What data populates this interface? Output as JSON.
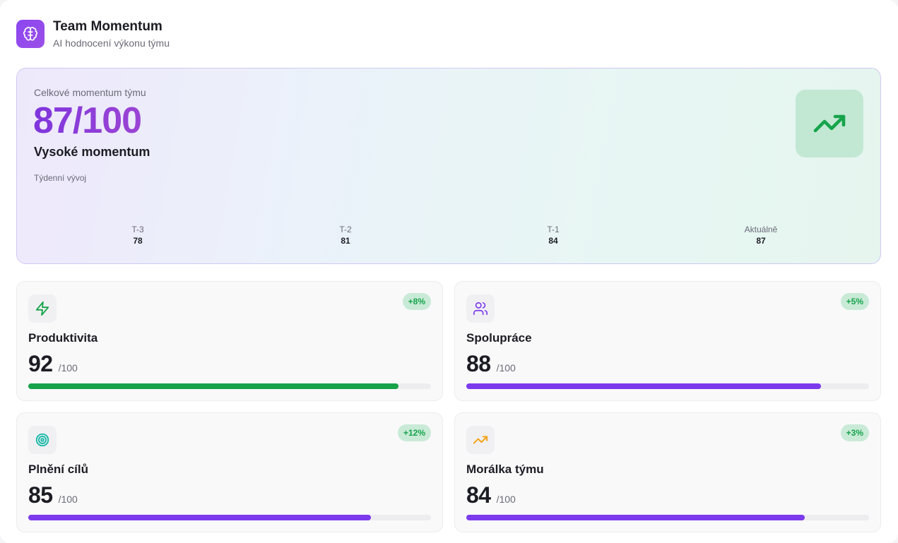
{
  "header": {
    "title": "Team Momentum",
    "subtitle": "AI hodnocení výkonu týmu",
    "logo_icon": "brain-icon"
  },
  "hero": {
    "label": "Celkové momentum týmu",
    "score": "87/100",
    "status": "Vysoké momentum",
    "weekly_label": "Týdenní vývoj",
    "trend_icon": "trending-up-icon",
    "weeks": [
      {
        "label": "T-3",
        "value": "78"
      },
      {
        "label": "T-2",
        "value": "81"
      },
      {
        "label": "T-1",
        "value": "84"
      },
      {
        "label": "Aktuálně",
        "value": "87"
      }
    ]
  },
  "metrics": [
    {
      "title": "Produktivita",
      "value": "92",
      "max": "/100",
      "change": "+8%",
      "icon": "zap-icon",
      "progress": 0.92,
      "color": "#16a34a"
    },
    {
      "title": "Spolupráce",
      "value": "88",
      "max": "/100",
      "change": "+5%",
      "icon": "users-icon",
      "progress": 0.88,
      "color": "#7c3aed"
    },
    {
      "title": "Plnění cílů",
      "value": "85",
      "max": "/100",
      "change": "+12%",
      "icon": "target-icon",
      "progress": 0.85,
      "color": "#7c3aed"
    },
    {
      "title": "Morálka týmu",
      "value": "84",
      "max": "/100",
      "change": "+3%",
      "icon": "trending-up-icon",
      "progress": 0.84,
      "color": "#7c3aed"
    }
  ],
  "colors": {
    "accent": "#8a37dd",
    "positive": "#16a34a",
    "purple": "#7c3aed",
    "teal": "#14b8a6",
    "amber": "#f59e0b"
  }
}
